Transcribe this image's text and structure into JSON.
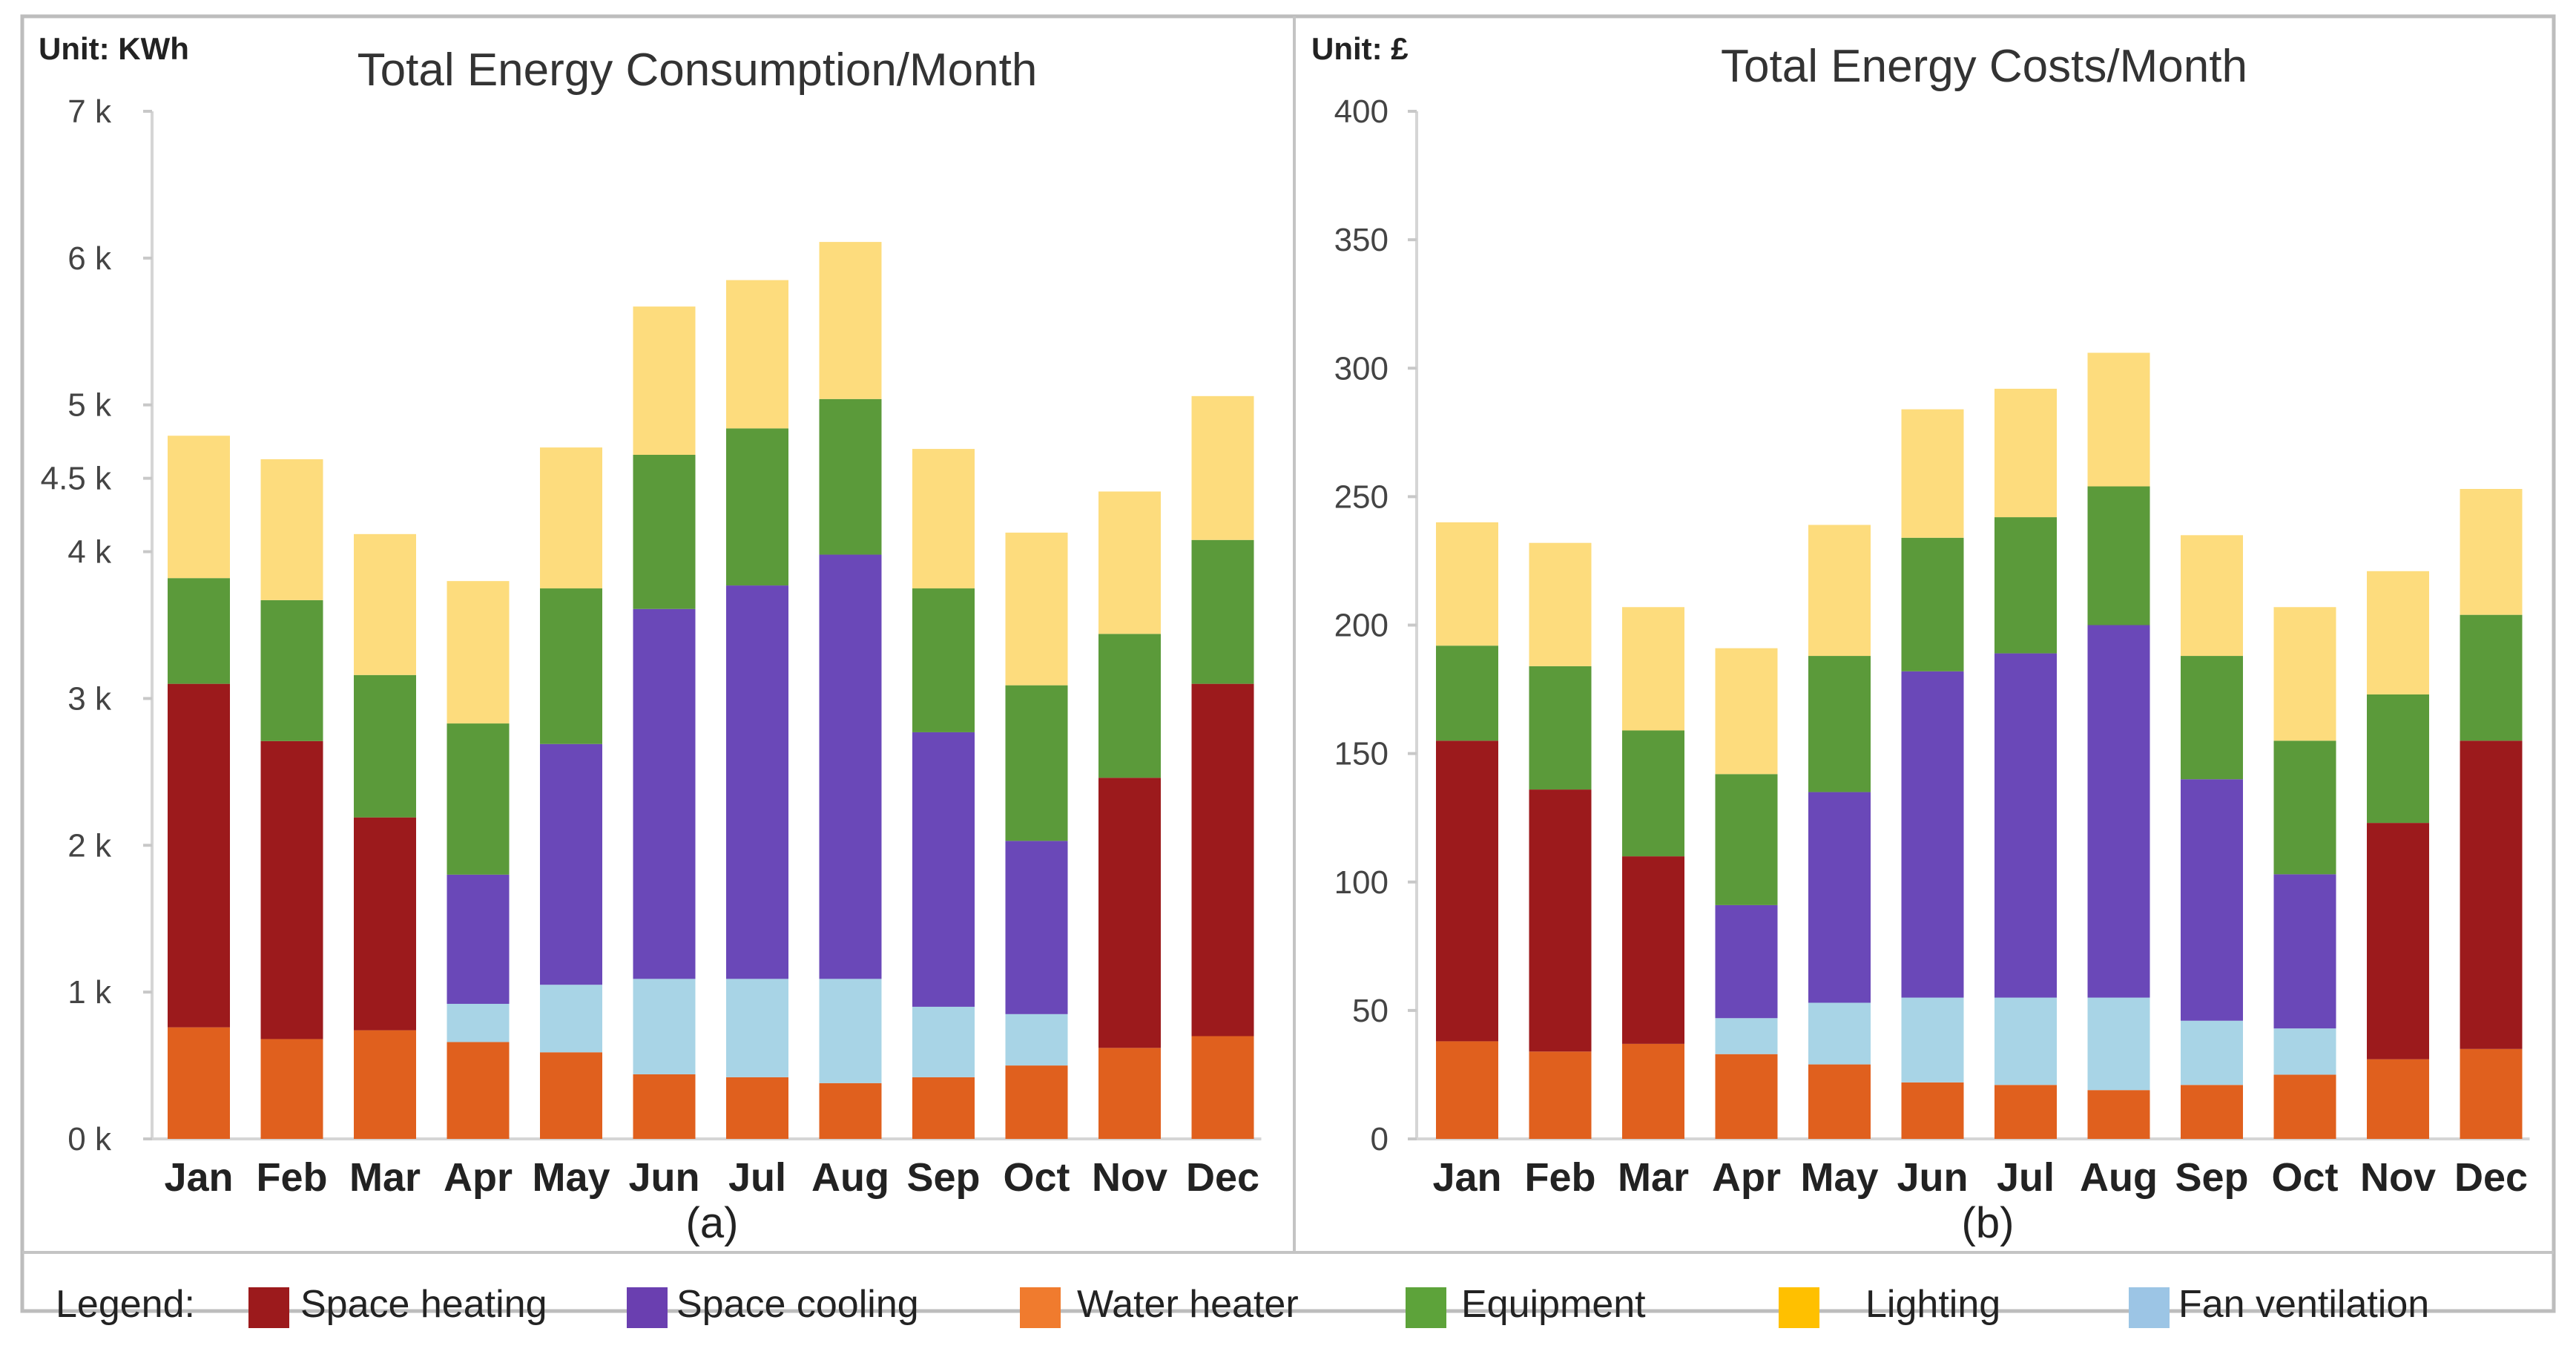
{
  "legend": {
    "title": "Legend:",
    "items": [
      {
        "label": "Space heating",
        "color": "#9c1a1c"
      },
      {
        "label": "Space cooling",
        "color": "#6a3fb0"
      },
      {
        "label": "Water heater",
        "color": "#f07b2e"
      },
      {
        "label": "Equipment",
        "color": "#5da33a"
      },
      {
        "label": "Lighting",
        "color": "#ffc000"
      },
      {
        "label": "Fan ventilation",
        "color": "#9cc5e5"
      }
    ]
  },
  "chart_data": [
    {
      "type": "bar",
      "stacked": true,
      "title": "Total Energy Consumption/Month",
      "unit_label": "Unit: KWh",
      "caption": "(a)",
      "categories": [
        "Jan",
        "Feb",
        "Mar",
        "Apr",
        "May",
        "Jun",
        "Jul",
        "Aug",
        "Sep",
        "Oct",
        "Nov",
        "Dec"
      ],
      "y_ticks": [
        {
          "value": 0,
          "label": "0 k"
        },
        {
          "value": 1000,
          "label": "1 k"
        },
        {
          "value": 2000,
          "label": "2 k"
        },
        {
          "value": 3000,
          "label": "3 k"
        },
        {
          "value": 4000,
          "label": "4 k"
        },
        {
          "value": 4500,
          "label": "4.5 k"
        },
        {
          "value": 5000,
          "label": "5 k"
        },
        {
          "value": 6000,
          "label": "6 k"
        },
        {
          "value": 7000,
          "label": "7 k"
        }
      ],
      "series": [
        {
          "name": "Water heater",
          "color": "#e0601e",
          "values": [
            760,
            680,
            740,
            660,
            590,
            440,
            420,
            380,
            420,
            500,
            620,
            700
          ]
        },
        {
          "name": "Space heating",
          "color": "#9c1a1c",
          "values": [
            2340,
            2030,
            1450,
            0,
            0,
            0,
            0,
            0,
            0,
            0,
            1840,
            2400
          ]
        },
        {
          "name": "Fan ventilation",
          "color": "#a8d4e6",
          "values": [
            0,
            0,
            0,
            260,
            460,
            650,
            670,
            710,
            480,
            350,
            0,
            0
          ]
        },
        {
          "name": "Space cooling",
          "color": "#6a48b8",
          "values": [
            0,
            0,
            0,
            880,
            1640,
            2520,
            2680,
            2890,
            1870,
            1180,
            0,
            0
          ]
        },
        {
          "name": "Equipment",
          "color": "#5b9a3a",
          "values": [
            720,
            960,
            970,
            1030,
            1060,
            1050,
            1070,
            1060,
            980,
            1060,
            980,
            980
          ]
        },
        {
          "name": "Lighting",
          "color": "#fddc7d",
          "values": [
            970,
            960,
            960,
            970,
            960,
            1010,
            1010,
            1070,
            950,
            1040,
            970,
            980
          ]
        }
      ]
    },
    {
      "type": "bar",
      "stacked": true,
      "title": "Total Energy Costs/Month",
      "unit_label": "Unit: £",
      "caption": "(b)",
      "categories": [
        "Jan",
        "Feb",
        "Mar",
        "Apr",
        "May",
        "Jun",
        "Jul",
        "Aug",
        "Sep",
        "Oct",
        "Nov",
        "Dec"
      ],
      "y_ticks": [
        {
          "value": 0,
          "label": "0"
        },
        {
          "value": 50,
          "label": "50"
        },
        {
          "value": 100,
          "label": "100"
        },
        {
          "value": 150,
          "label": "150"
        },
        {
          "value": 200,
          "label": "200"
        },
        {
          "value": 250,
          "label": "250"
        },
        {
          "value": 300,
          "label": "300"
        },
        {
          "value": 350,
          "label": "350"
        },
        {
          "value": 400,
          "label": "400"
        }
      ],
      "series": [
        {
          "name": "Water heater",
          "color": "#e0601e",
          "values": [
            38,
            34,
            37,
            33,
            29,
            22,
            21,
            19,
            21,
            25,
            31,
            35
          ]
        },
        {
          "name": "Space heating",
          "color": "#9c1a1c",
          "values": [
            117,
            102,
            73,
            0,
            0,
            0,
            0,
            0,
            0,
            0,
            92,
            120
          ]
        },
        {
          "name": "Fan ventilation",
          "color": "#a8d4e6",
          "values": [
            0,
            0,
            0,
            14,
            24,
            33,
            34,
            36,
            25,
            18,
            0,
            0
          ]
        },
        {
          "name": "Space cooling",
          "color": "#6a48b8",
          "values": [
            0,
            0,
            0,
            44,
            82,
            127,
            134,
            145,
            94,
            60,
            0,
            0
          ]
        },
        {
          "name": "Equipment",
          "color": "#5b9a3a",
          "values": [
            37,
            48,
            49,
            51,
            53,
            52,
            53,
            54,
            48,
            52,
            50,
            49
          ]
        },
        {
          "name": "Lighting",
          "color": "#fddc7d",
          "values": [
            48,
            48,
            48,
            49,
            51,
            50,
            50,
            52,
            47,
            52,
            48,
            49
          ]
        }
      ]
    }
  ]
}
